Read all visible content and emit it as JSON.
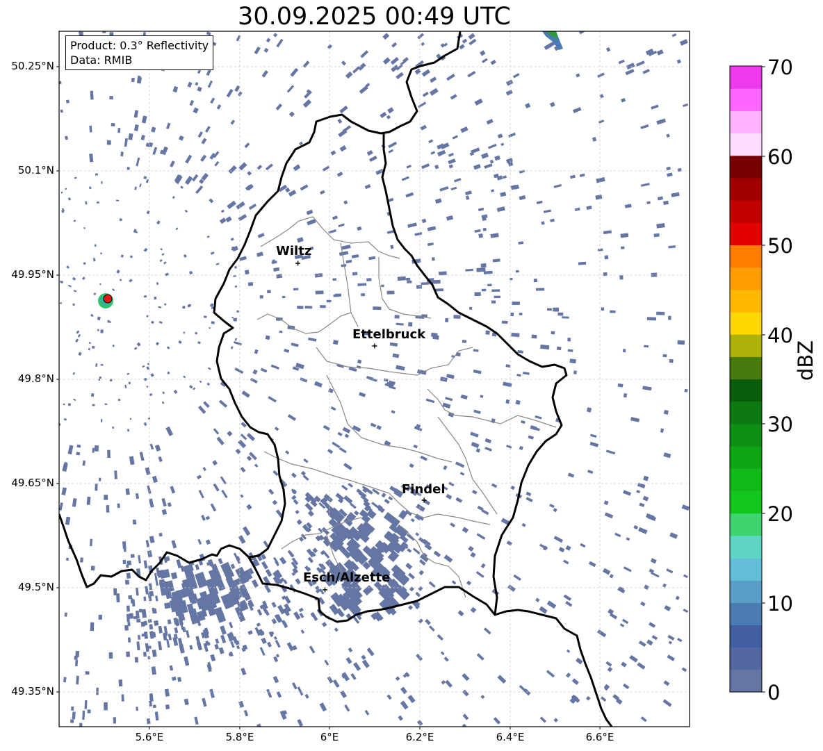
{
  "title": "30.09.2025 00:49 UTC",
  "info": {
    "product": "Product: 0.3° Reflectivity",
    "data": "Data: RMIB"
  },
  "lat_ticks": [
    "50.25°N",
    "50.1°N",
    "49.95°N",
    "49.8°N",
    "49.65°N",
    "49.5°N",
    "49.35°N"
  ],
  "lon_ticks": [
    "5.6°E",
    "5.8°E",
    "6°E",
    "6.2°E",
    "6.4°E",
    "6.6°E"
  ],
  "cities": [
    {
      "name": "Wiltz",
      "lon": 5.93,
      "lat": 49.967
    },
    {
      "name": "Ettelbruck",
      "lon": 6.1,
      "lat": 49.848
    },
    {
      "name": "Findel",
      "lon": 6.21,
      "lat": 49.626
    },
    {
      "name": "Esch/Alzette",
      "lon": 5.99,
      "lat": 49.497
    }
  ],
  "colorbar": {
    "label": "dBZ",
    "ticks": [
      "0",
      "10",
      "20",
      "30",
      "40",
      "50",
      "60",
      "70"
    ],
    "colors": [
      "#6576a4",
      "#5367a0",
      "#435fa2",
      "#4b7bb3",
      "#5a9ec8",
      "#63bfd9",
      "#5fd6c4",
      "#3ed570",
      "#13c61e",
      "#10b818",
      "#0fa615",
      "#0e8f13",
      "#0c7a10",
      "#095e0c",
      "#487a0e",
      "#acb20a",
      "#ffd800",
      "#ffb700",
      "#ff9d00",
      "#ff7e00",
      "#e50000",
      "#c20000",
      "#a00000",
      "#770000",
      "#ffdcff",
      "#ffb2ff",
      "#ff66ff",
      "#ec3aec"
    ]
  }
}
